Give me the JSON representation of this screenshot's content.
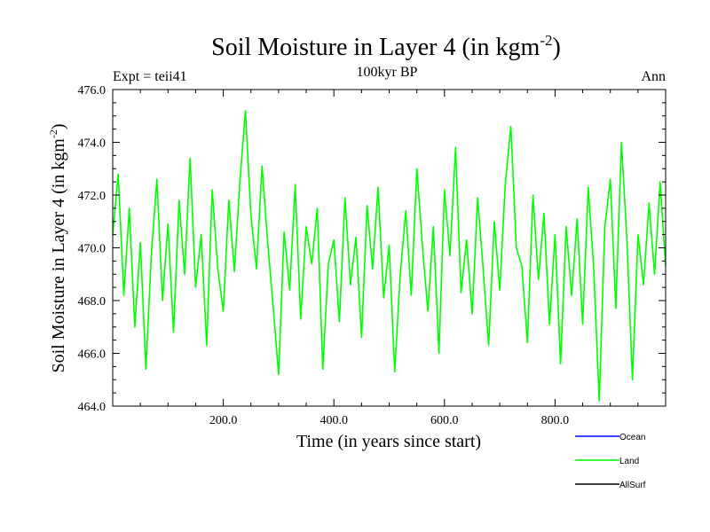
{
  "chart_data": {
    "type": "line",
    "title_main": "Soil Moisture in Layer 4 (in kgm",
    "title_sup": "-2",
    "title_close": ")",
    "subtitle": "100kyr BP",
    "left_label": "Expt = teii41",
    "right_label": "Ann",
    "xlabel": "Time (in years since start)",
    "ylabel_main": "Soil Moisture in Layer 4 (in kgm",
    "ylabel_sup": "-2",
    "ylabel_close": ")",
    "xlim": [
      0,
      1000
    ],
    "ylim": [
      464,
      476
    ],
    "x_ticks": [
      200,
      400,
      600,
      800
    ],
    "x_tick_labels": [
      "200.0",
      "400.0",
      "600.0",
      "800.0"
    ],
    "y_ticks": [
      464,
      466,
      468,
      470,
      472,
      474,
      476
    ],
    "y_tick_labels": [
      "464.0",
      "466.0",
      "468.0",
      "470.0",
      "472.0",
      "474.0",
      "476.0"
    ],
    "grid": false,
    "legend_position": "bottom-right",
    "legend": [
      {
        "name": "Ocean",
        "color": "#0000ff"
      },
      {
        "name": "Land",
        "color": "#00ff00"
      },
      {
        "name": "AllSurf",
        "color": "#000000"
      }
    ],
    "series": [
      {
        "name": "Land",
        "color": "#00ff00",
        "x": [
          0,
          10,
          20,
          30,
          40,
          50,
          60,
          70,
          80,
          90,
          100,
          110,
          120,
          130,
          140,
          150,
          160,
          170,
          180,
          190,
          200,
          210,
          220,
          230,
          240,
          250,
          260,
          270,
          280,
          290,
          300,
          310,
          320,
          330,
          340,
          350,
          360,
          370,
          380,
          390,
          400,
          410,
          420,
          430,
          440,
          450,
          460,
          470,
          480,
          490,
          500,
          510,
          520,
          530,
          540,
          550,
          560,
          570,
          580,
          590,
          600,
          610,
          620,
          630,
          640,
          650,
          660,
          670,
          680,
          690,
          700,
          710,
          720,
          730,
          740,
          750,
          760,
          770,
          780,
          790,
          800,
          810,
          820,
          830,
          840,
          850,
          860,
          870,
          880,
          890,
          900,
          910,
          920,
          930,
          940,
          950,
          960,
          970,
          980,
          990,
          1000
        ],
        "values": [
          470.5,
          472.8,
          468.2,
          471.5,
          467.0,
          470.2,
          465.4,
          469.8,
          472.6,
          468.0,
          470.9,
          466.8,
          471.8,
          469.0,
          473.4,
          468.5,
          470.5,
          466.3,
          472.2,
          469.2,
          467.6,
          471.8,
          469.1,
          472.5,
          475.2,
          471.2,
          469.2,
          473.1,
          470.3,
          467.8,
          465.2,
          470.6,
          468.4,
          472.4,
          467.3,
          470.8,
          469.4,
          471.5,
          465.4,
          469.4,
          470.3,
          467.2,
          471.9,
          468.6,
          470.4,
          466.6,
          471.6,
          469.2,
          472.3,
          468.1,
          470.1,
          465.3,
          469.0,
          471.4,
          468.2,
          473.0,
          470.1,
          467.6,
          470.8,
          466.0,
          472.2,
          469.7,
          473.8,
          468.3,
          470.3,
          467.5,
          471.9,
          469.2,
          466.3,
          471.0,
          468.4,
          472.4,
          474.6,
          470.0,
          469.3,
          466.4,
          472.0,
          468.8,
          471.3,
          467.1,
          470.5,
          465.6,
          470.8,
          468.2,
          471.1,
          467.1,
          472.3,
          469.2,
          464.2,
          470.8,
          472.6,
          467.7,
          474.0,
          470.3,
          465.0,
          470.5,
          468.6,
          471.7,
          469.0,
          472.5,
          469.3
        ]
      }
    ]
  }
}
